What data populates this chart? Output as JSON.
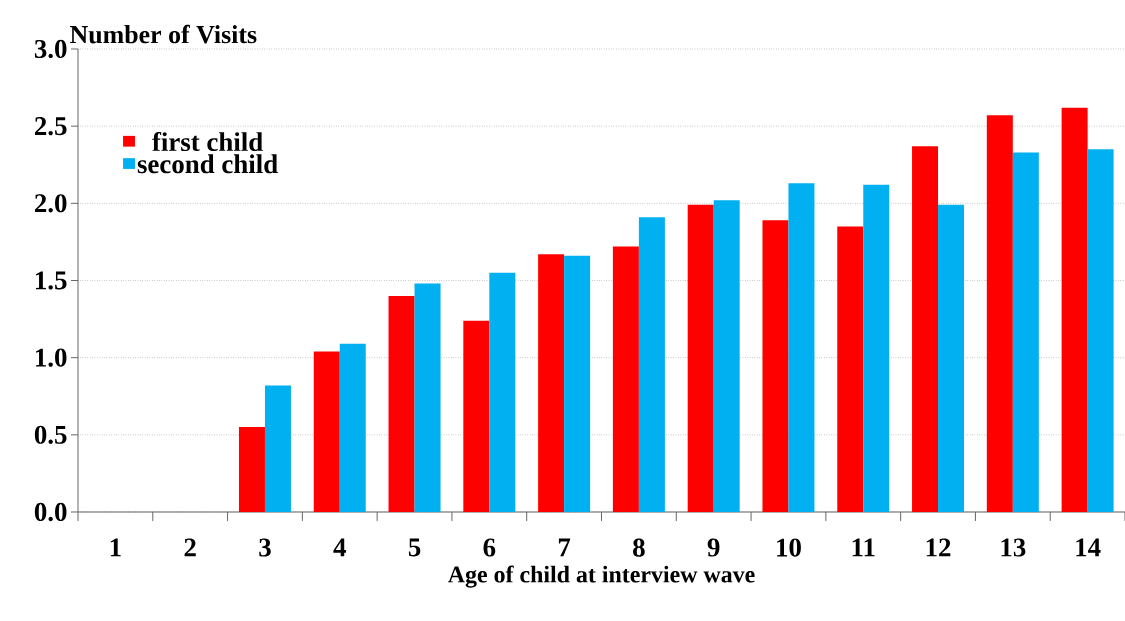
{
  "chart_data": {
    "type": "bar",
    "ylabel": "Number of Visits",
    "xlabel": "Age of child at interview wave",
    "categories": [
      "1",
      "2",
      "3",
      "4",
      "5",
      "6",
      "7",
      "8",
      "9",
      "10",
      "11",
      "12",
      "13",
      "14"
    ],
    "series": [
      {
        "name": "first child",
        "color": "#ff0000",
        "values": [
          null,
          null,
          0.55,
          1.04,
          1.4,
          1.24,
          1.67,
          1.72,
          1.99,
          1.89,
          1.85,
          2.37,
          2.57,
          2.62
        ]
      },
      {
        "name": "second child",
        "color": "#00b0f0",
        "values": [
          null,
          null,
          0.82,
          1.09,
          1.48,
          1.55,
          1.66,
          1.91,
          2.02,
          2.13,
          2.12,
          1.99,
          2.33,
          2.35
        ]
      }
    ],
    "ylim": [
      0,
      3.0
    ],
    "yticks": [
      {
        "value": 0,
        "label": "0.0"
      },
      {
        "value": 0.5,
        "label": "0.5"
      },
      {
        "value": 1,
        "label": "1.0"
      },
      {
        "value": 1.5,
        "label": "1.5"
      },
      {
        "value": 2,
        "label": "2.0"
      },
      {
        "value": 2.5,
        "label": "2.5"
      },
      {
        "value": 3,
        "label": "3.0"
      }
    ],
    "grid": "y",
    "legend": "top left"
  }
}
